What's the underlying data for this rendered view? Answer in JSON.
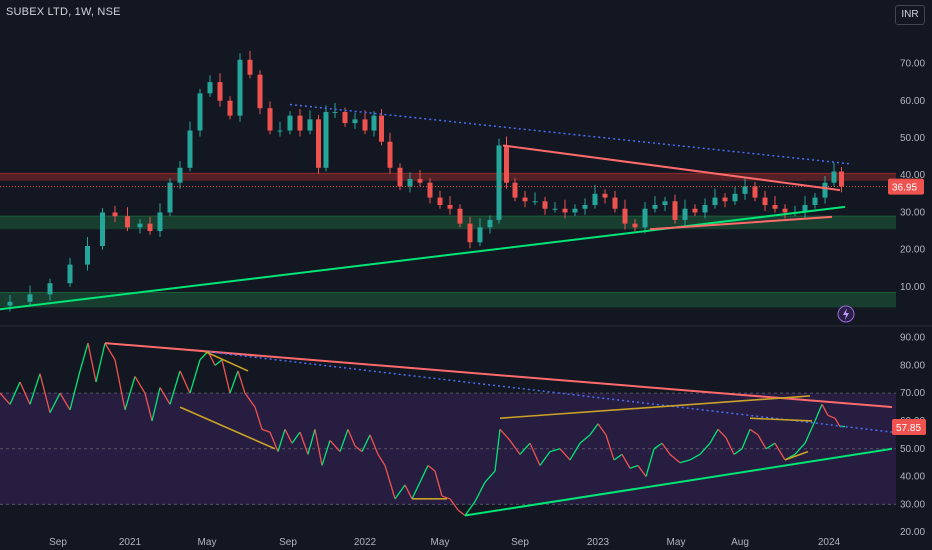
{
  "header": {
    "symbol_title": "SUBEX LTD, 1W, NSE",
    "currency": "INR"
  },
  "colors": {
    "background": "#131722",
    "up": "#26a69a",
    "down": "#ef5350",
    "uptrend_line": "#00e676",
    "downtrend_line": "#ff6b6b",
    "dotted_trend": "#4c6ef5",
    "resistance_zone": "#8b2a2a",
    "support_zone": "#1b5e3a",
    "rsi_band": "#2a1f45",
    "divergence": "#c9a227"
  },
  "chart_data": [
    {
      "type": "candlestick",
      "panel": "price",
      "x_tick_labels": [
        "Sep",
        "2021",
        "May",
        "Sep",
        "2022",
        "May",
        "Sep",
        "2023",
        "May",
        "Aug",
        "2024"
      ],
      "y_tick_labels": [
        "70.00",
        "60.00",
        "50.00",
        "40.00",
        "30.00",
        "20.00",
        "10.00"
      ],
      "ylim": [
        3,
        79
      ],
      "last_price": "36.95",
      "zones": [
        {
          "name": "resistance",
          "from": 38.5,
          "to": 40.5
        },
        {
          "name": "support",
          "from": 25.5,
          "to": 29.0
        },
        {
          "name": "support",
          "from": 4.5,
          "to": 8.5
        }
      ],
      "trendlines": [
        {
          "name": "long-term support",
          "x": [
            0,
            845
          ],
          "y": [
            4,
            31.5
          ]
        },
        {
          "name": "descending resistance",
          "x": [
            503,
            840
          ],
          "y": [
            48,
            36
          ]
        },
        {
          "name": "dotted resistance",
          "x": [
            290,
            852
          ],
          "y": [
            59,
            43
          ]
        },
        {
          "name": "ascending support",
          "x": [
            650,
            832
          ],
          "y": [
            25.5,
            28.8
          ]
        }
      ],
      "price_path": [
        [
          0,
          5
        ],
        [
          20,
          6
        ],
        [
          40,
          8
        ],
        [
          60,
          11
        ],
        [
          80,
          16
        ],
        [
          95,
          21
        ],
        [
          110,
          30
        ],
        [
          120,
          29
        ],
        [
          135,
          26
        ],
        [
          145,
          27
        ],
        [
          155,
          25
        ],
        [
          165,
          30
        ],
        [
          175,
          38
        ],
        [
          185,
          42
        ],
        [
          195,
          52
        ],
        [
          205,
          62
        ],
        [
          215,
          65
        ],
        [
          225,
          60
        ],
        [
          235,
          56
        ],
        [
          245,
          71
        ],
        [
          255,
          67
        ],
        [
          265,
          58
        ],
        [
          275,
          52
        ],
        [
          285,
          52
        ],
        [
          295,
          56
        ],
        [
          305,
          52
        ],
        [
          315,
          55
        ],
        [
          322,
          42
        ],
        [
          330,
          57
        ],
        [
          340,
          57
        ],
        [
          350,
          54
        ],
        [
          360,
          55
        ],
        [
          370,
          52
        ],
        [
          378,
          56
        ],
        [
          385,
          49
        ],
        [
          395,
          42
        ],
        [
          405,
          37
        ],
        [
          415,
          39
        ],
        [
          425,
          38
        ],
        [
          435,
          34
        ],
        [
          445,
          32
        ],
        [
          455,
          31
        ],
        [
          465,
          27
        ],
        [
          475,
          22
        ],
        [
          485,
          26
        ],
        [
          495,
          28
        ],
        [
          503,
          48
        ],
        [
          510,
          38
        ],
        [
          520,
          34
        ],
        [
          530,
          33
        ],
        [
          540,
          33
        ],
        [
          550,
          31
        ],
        [
          560,
          31
        ],
        [
          570,
          30
        ],
        [
          580,
          31
        ],
        [
          590,
          32
        ],
        [
          600,
          35
        ],
        [
          610,
          34
        ],
        [
          620,
          31
        ],
        [
          630,
          27
        ],
        [
          640,
          26
        ],
        [
          650,
          31
        ],
        [
          660,
          32
        ],
        [
          670,
          33
        ],
        [
          680,
          28
        ],
        [
          690,
          31
        ],
        [
          700,
          30
        ],
        [
          710,
          32
        ],
        [
          720,
          34
        ],
        [
          730,
          33
        ],
        [
          740,
          35
        ],
        [
          750,
          37
        ],
        [
          760,
          34
        ],
        [
          770,
          32
        ],
        [
          780,
          31
        ],
        [
          790,
          30
        ],
        [
          800,
          30
        ],
        [
          810,
          32
        ],
        [
          820,
          34
        ],
        [
          830,
          38
        ],
        [
          838,
          41
        ],
        [
          845,
          37
        ]
      ]
    },
    {
      "type": "line",
      "panel": "rsi",
      "y_tick_labels": [
        "90.00",
        "80.00",
        "70.00",
        "60.00",
        "50.00",
        "40.00",
        "30.00",
        "20.00"
      ],
      "ylim": [
        19,
        92
      ],
      "band": [
        30,
        70
      ],
      "last_value": "57.85",
      "trendlines": [
        {
          "name": "rsi resistance",
          "x": [
            105,
            892
          ],
          "y": [
            88,
            65
          ]
        },
        {
          "name": "rsi support",
          "x": [
            465,
            892
          ],
          "y": [
            26,
            50
          ]
        },
        {
          "name": "rsi dotted",
          "x": [
            205,
            892
          ],
          "y": [
            85,
            56
          ]
        }
      ],
      "divergence_lines": [
        {
          "x": [
            180,
            275
          ],
          "y": [
            65,
            50
          ]
        },
        {
          "x": [
            205,
            248
          ],
          "y": [
            85,
            78
          ]
        },
        {
          "x": [
            412,
            447
          ],
          "y": [
            32,
            32
          ]
        },
        {
          "x": [
            500,
            810
          ],
          "y": [
            61,
            69
          ]
        },
        {
          "x": [
            750,
            812
          ],
          "y": [
            61,
            60
          ]
        },
        {
          "x": [
            785,
            808
          ],
          "y": [
            46,
            49
          ]
        }
      ],
      "rsi_path": [
        [
          0,
          70
        ],
        [
          10,
          66
        ],
        [
          20,
          74
        ],
        [
          30,
          66
        ],
        [
          40,
          77
        ],
        [
          50,
          63
        ],
        [
          60,
          70
        ],
        [
          70,
          64
        ],
        [
          80,
          78
        ],
        [
          88,
          88
        ],
        [
          96,
          74
        ],
        [
          105,
          88
        ],
        [
          115,
          82
        ],
        [
          125,
          64
        ],
        [
          135,
          76
        ],
        [
          145,
          70
        ],
        [
          152,
          60
        ],
        [
          160,
          72
        ],
        [
          170,
          66
        ],
        [
          180,
          78
        ],
        [
          190,
          70
        ],
        [
          200,
          82
        ],
        [
          208,
          85
        ],
        [
          215,
          80
        ],
        [
          222,
          82
        ],
        [
          230,
          70
        ],
        [
          238,
          78
        ],
        [
          245,
          70
        ],
        [
          255,
          65
        ],
        [
          262,
          57
        ],
        [
          270,
          56
        ],
        [
          278,
          49
        ],
        [
          285,
          57
        ],
        [
          292,
          52
        ],
        [
          300,
          56
        ],
        [
          308,
          48
        ],
        [
          315,
          57
        ],
        [
          322,
          44
        ],
        [
          330,
          53
        ],
        [
          340,
          49
        ],
        [
          348,
          57
        ],
        [
          355,
          51
        ],
        [
          362,
          49
        ],
        [
          370,
          55
        ],
        [
          378,
          48
        ],
        [
          385,
          44
        ],
        [
          395,
          32
        ],
        [
          405,
          37
        ],
        [
          412,
          32
        ],
        [
          420,
          38
        ],
        [
          428,
          44
        ],
        [
          435,
          42
        ],
        [
          442,
          33
        ],
        [
          450,
          32
        ],
        [
          458,
          28
        ],
        [
          465,
          26
        ],
        [
          475,
          31
        ],
        [
          485,
          38
        ],
        [
          495,
          42
        ],
        [
          500,
          57
        ],
        [
          510,
          53
        ],
        [
          520,
          48
        ],
        [
          530,
          52
        ],
        [
          540,
          44
        ],
        [
          550,
          49
        ],
        [
          560,
          50
        ],
        [
          570,
          46
        ],
        [
          580,
          52
        ],
        [
          590,
          55
        ],
        [
          598,
          59
        ],
        [
          606,
          55
        ],
        [
          614,
          46
        ],
        [
          622,
          48
        ],
        [
          630,
          43
        ],
        [
          638,
          44
        ],
        [
          646,
          40
        ],
        [
          654,
          50
        ],
        [
          662,
          52
        ],
        [
          670,
          48
        ],
        [
          680,
          45
        ],
        [
          690,
          46
        ],
        [
          700,
          48
        ],
        [
          710,
          52
        ],
        [
          718,
          57
        ],
        [
          726,
          54
        ],
        [
          734,
          48
        ],
        [
          742,
          50
        ],
        [
          750,
          57
        ],
        [
          758,
          55
        ],
        [
          766,
          50
        ],
        [
          775,
          52
        ],
        [
          785,
          46
        ],
        [
          795,
          48
        ],
        [
          805,
          52
        ],
        [
          815,
          60
        ],
        [
          822,
          66
        ],
        [
          828,
          62
        ],
        [
          835,
          61
        ],
        [
          840,
          58
        ],
        [
          845,
          58
        ]
      ]
    }
  ]
}
